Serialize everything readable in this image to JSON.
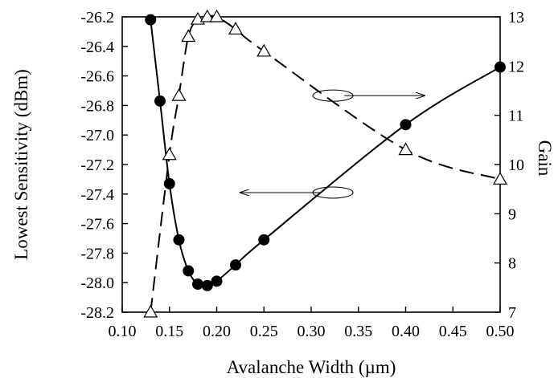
{
  "chart_data": {
    "type": "line",
    "xlabel": "Avalanche Width (µm)",
    "ylabel_left": "Lowest Sensitivity (dBm)",
    "ylabel_right": "Gain",
    "xlim": [
      0.1,
      0.5
    ],
    "ylim_left": [
      -28.2,
      -26.2
    ],
    "ylim_right": [
      7,
      13
    ],
    "grid": false,
    "x_ticks": [
      "0.10",
      "0.15",
      "0.20",
      "0.25",
      "0.30",
      "0.35",
      "0.40",
      "0.45",
      "0.50"
    ],
    "x_tick_values": [
      0.1,
      0.15,
      0.2,
      0.25,
      0.3,
      0.35,
      0.4,
      0.45,
      0.5
    ],
    "y_left_ticks": [
      "-26.2",
      "-26.4",
      "-26.6",
      "-26.8",
      "-27.0",
      "-27.2",
      "-27.4",
      "-27.6",
      "-27.8",
      "-28.0",
      "-28.2"
    ],
    "y_left_tick_values": [
      -26.2,
      -26.4,
      -26.6,
      -26.8,
      -27.0,
      -27.2,
      -27.4,
      -27.6,
      -27.8,
      -28.0,
      -28.2
    ],
    "y_right_ticks": [
      "13",
      "12",
      "11",
      "10",
      "9",
      "8",
      "7"
    ],
    "y_right_tick_values": [
      13,
      12,
      11,
      10,
      9,
      8,
      7
    ],
    "series": [
      {
        "axis": "left",
        "style": "solid",
        "marker": "filled-circle",
        "x": [
          0.13,
          0.14,
          0.15,
          0.16,
          0.17,
          0.18,
          0.19,
          0.2,
          0.22,
          0.25,
          0.4,
          0.5
        ],
        "y": [
          -26.22,
          -26.77,
          -27.33,
          -27.71,
          -27.92,
          -28.01,
          -28.02,
          -27.99,
          -27.88,
          -27.71,
          -26.93,
          -26.54
        ]
      },
      {
        "axis": "right",
        "style": "dashed",
        "marker": "open-triangle",
        "x": [
          0.13,
          0.15,
          0.16,
          0.17,
          0.18,
          0.19,
          0.2,
          0.22,
          0.25,
          0.4,
          0.5
        ],
        "y": [
          7.0,
          10.2,
          11.4,
          12.6,
          12.95,
          13.0,
          13.0,
          12.75,
          12.3,
          10.3,
          9.7
        ]
      }
    ],
    "annotations": [
      {
        "shape": "ellipse",
        "x": 0.323,
        "y_right": 11.4
      },
      {
        "shape": "arrow",
        "direction": "right",
        "from_x": 0.335,
        "to_x": 0.42,
        "y_right": 11.4
      },
      {
        "shape": "ellipse",
        "x": 0.323,
        "y_left": -27.39
      },
      {
        "shape": "arrow",
        "direction": "left",
        "from_x": 0.31,
        "to_x": 0.225,
        "y_left": -27.39
      }
    ]
  }
}
